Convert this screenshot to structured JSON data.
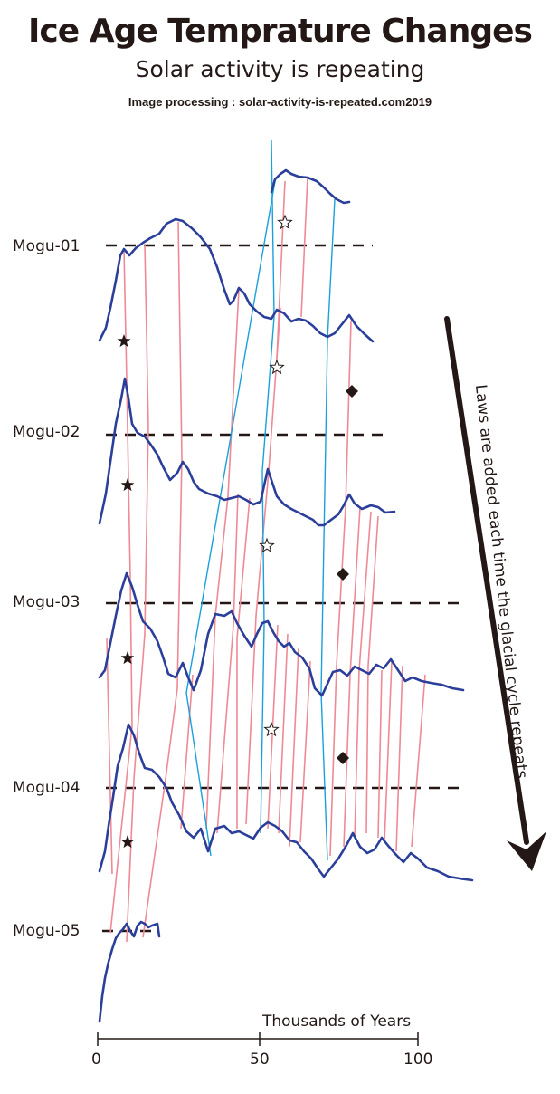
{
  "header": {
    "title": "Ice Age Temprature Changes",
    "subtitle": "Solar activity is repeating",
    "credit": "Image processing : solar-activity-is-repeated.com2019"
  },
  "curves": [
    {
      "label": "Mogu-01"
    },
    {
      "label": "Mogu-02"
    },
    {
      "label": "Mogu-03"
    },
    {
      "label": "Mogu-04"
    },
    {
      "label": "Mogu-05"
    }
  ],
  "axis": {
    "title": "Thousands of Years",
    "ticks": [
      "0",
      "50",
      "100"
    ]
  },
  "arrow_note": "Laws are added each time the glacial cycle repeats.",
  "colors": {
    "curve": "#2b3f9a",
    "correlation_line": "#ee8a96",
    "cycle_line": "#1aa0dc",
    "text": "#231815"
  },
  "markers": [
    "black-star",
    "white-star",
    "black-diamond"
  ]
}
